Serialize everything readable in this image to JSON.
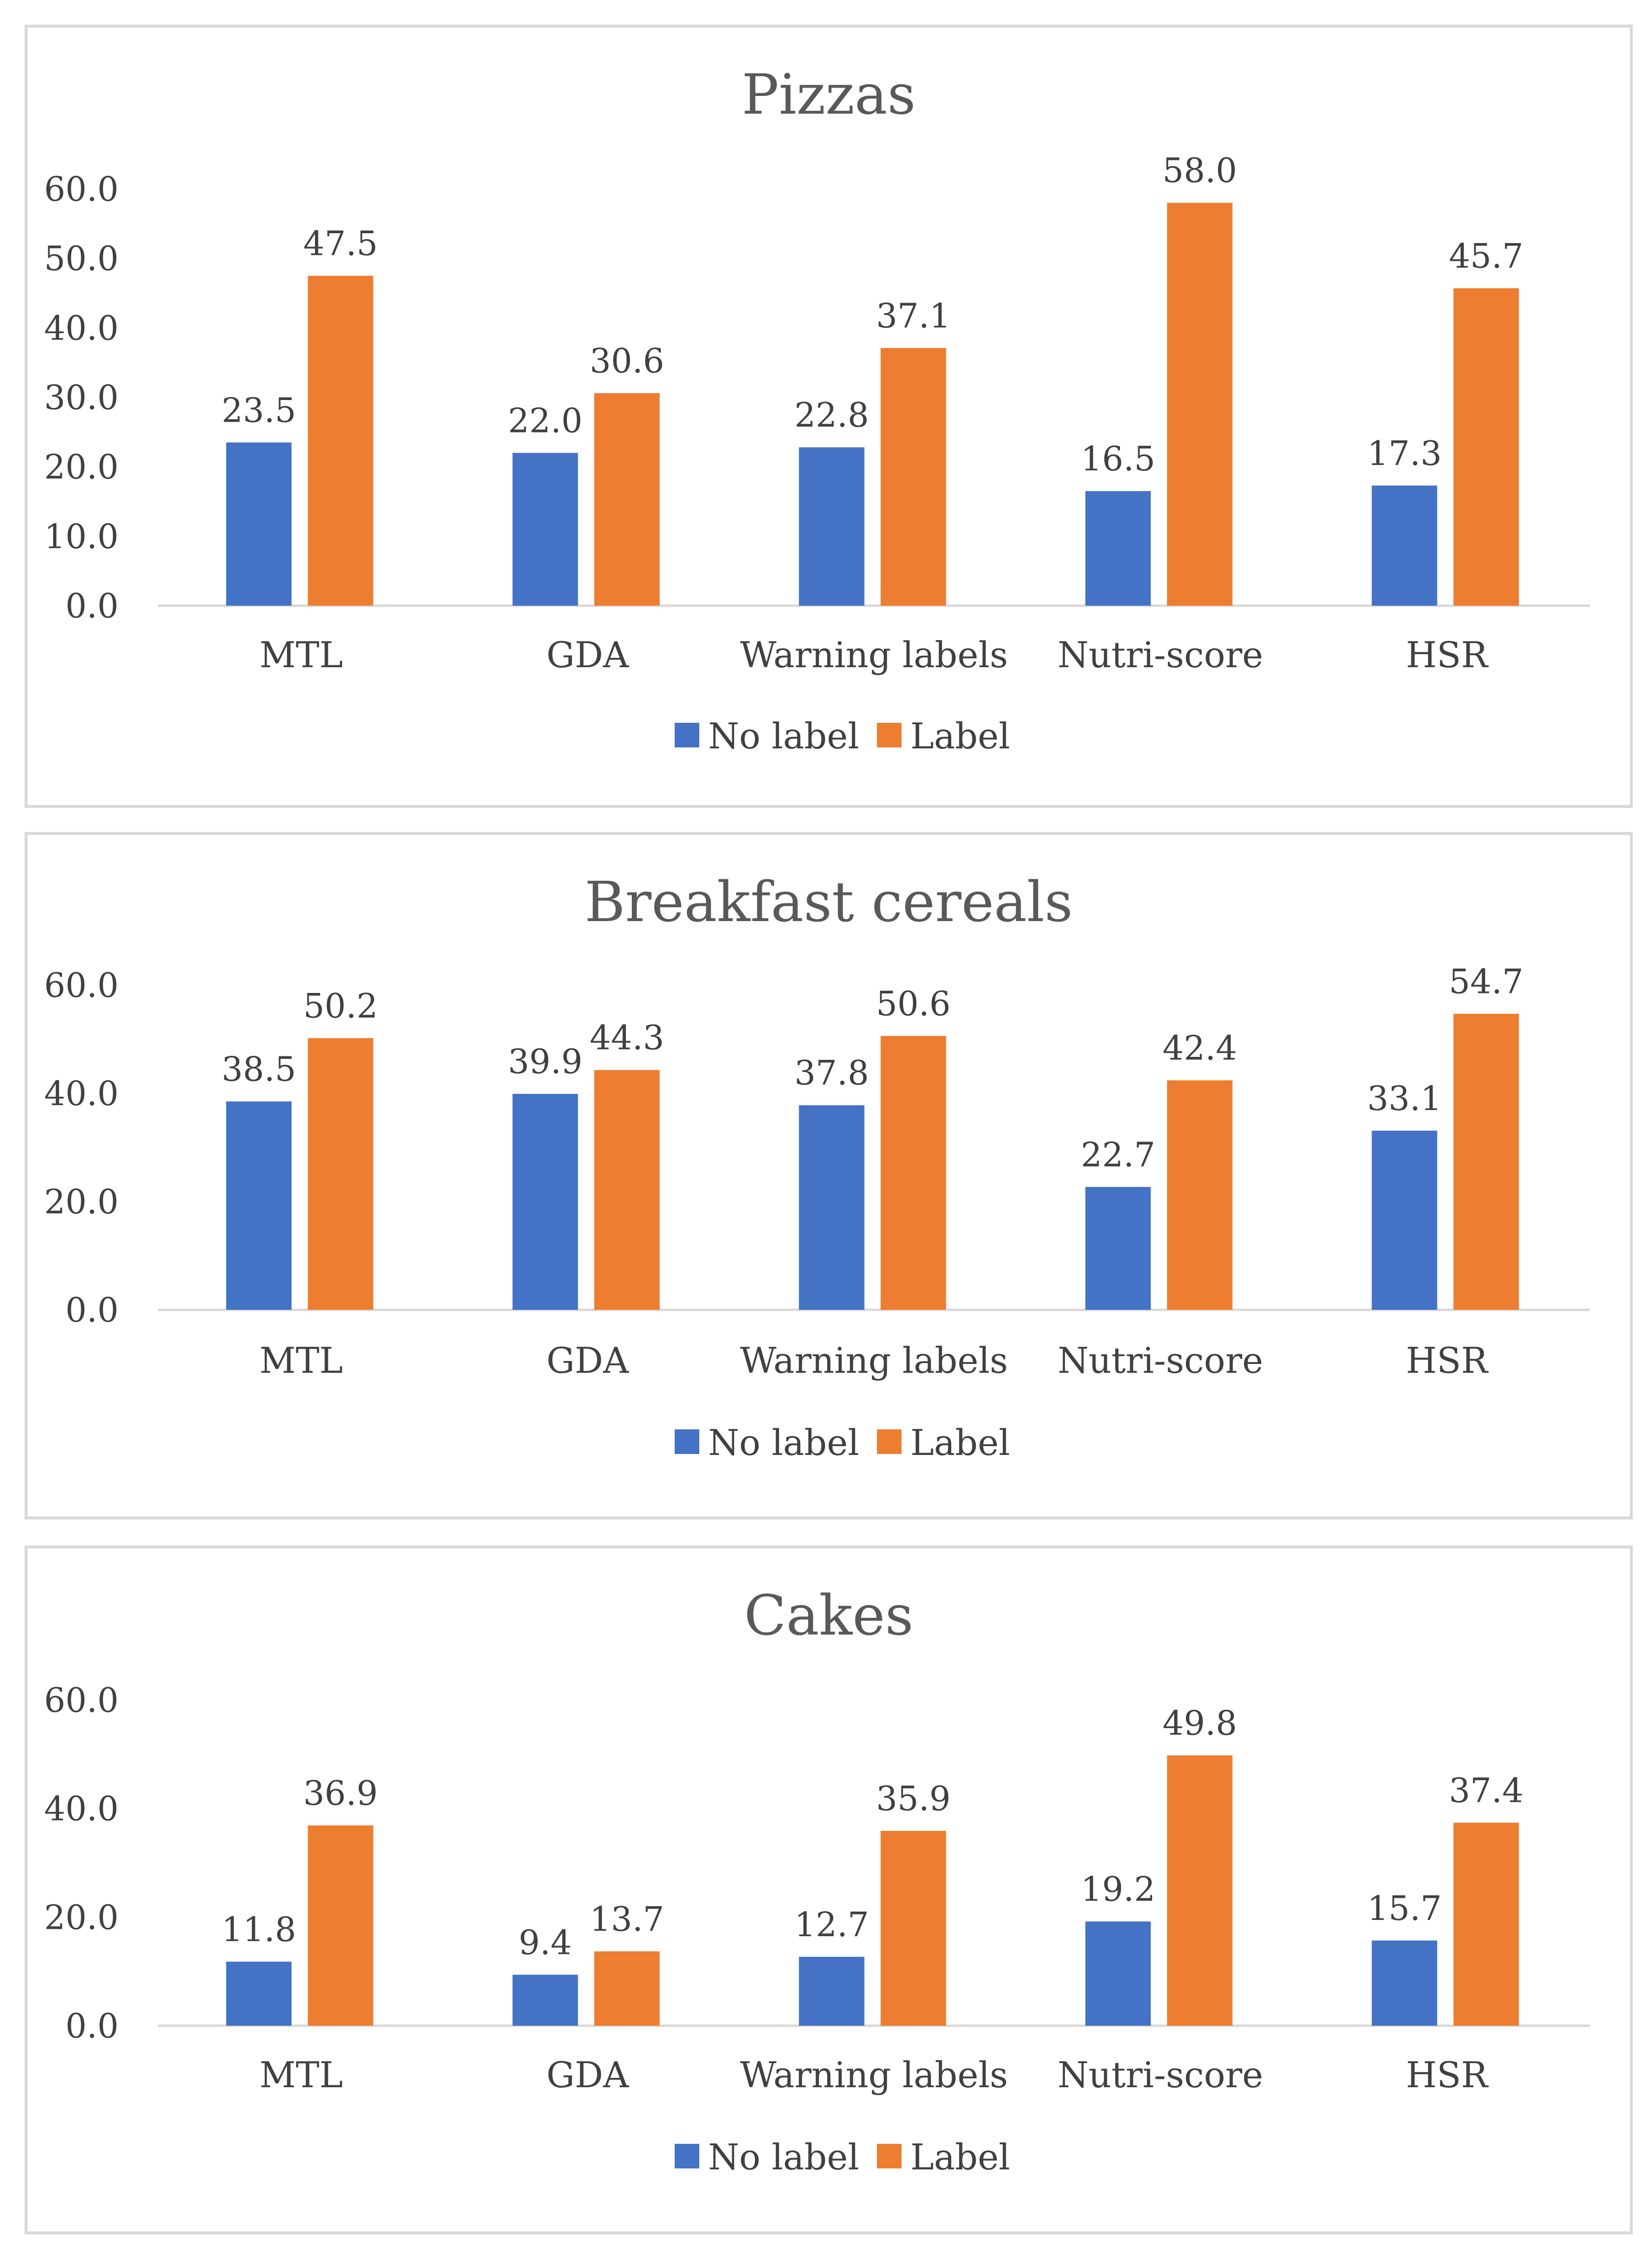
{
  "chart_data": [
    {
      "type": "bar",
      "title": "Pizzas",
      "categories": [
        "MTL",
        "GDA",
        "Warning labels",
        "Nutri-score",
        "HSR"
      ],
      "series": [
        {
          "name": "No label",
          "values": [
            23.5,
            22.0,
            22.8,
            16.5,
            17.3
          ],
          "labels": [
            "23.5",
            "22.0",
            "22.8",
            "16.5",
            "17.3"
          ]
        },
        {
          "name": "Label",
          "values": [
            47.5,
            30.6,
            37.1,
            58.0,
            45.7
          ],
          "labels": [
            "47.5",
            "30.6",
            "37.1",
            "58.0",
            "45.7"
          ]
        }
      ],
      "yticks": [
        "0.0",
        "10.0",
        "20.0",
        "30.0",
        "40.0",
        "50.0",
        "60.0"
      ],
      "ylim": [
        0,
        60
      ],
      "xlabel": "",
      "ylabel": "",
      "legend": "bottom"
    },
    {
      "type": "bar",
      "title": "Breakfast cereals",
      "categories": [
        "MTL",
        "GDA",
        "Warning labels",
        "Nutri-score",
        "HSR"
      ],
      "series": [
        {
          "name": "No label",
          "values": [
            38.5,
            39.9,
            37.8,
            22.7,
            33.1
          ],
          "labels": [
            "38.5",
            "39.9",
            "37.8",
            "22.7",
            "33.1"
          ]
        },
        {
          "name": "Label",
          "values": [
            50.2,
            44.3,
            50.6,
            42.4,
            54.7
          ],
          "labels": [
            "50.2",
            "44.3",
            "50.6",
            "42.4",
            "54.7"
          ]
        }
      ],
      "yticks": [
        "0.0",
        "20.0",
        "40.0",
        "60.0"
      ],
      "ylim": [
        0,
        60
      ],
      "xlabel": "",
      "ylabel": "",
      "legend": "bottom"
    },
    {
      "type": "bar",
      "title": "Cakes",
      "categories": [
        "MTL",
        "GDA",
        "Warning labels",
        "Nutri-score",
        "HSR"
      ],
      "series": [
        {
          "name": "No label",
          "values": [
            11.8,
            9.4,
            12.7,
            19.2,
            15.7
          ],
          "labels": [
            "11.8",
            "9.4",
            "12.7",
            "19.2",
            "15.7"
          ]
        },
        {
          "name": "Label",
          "values": [
            36.9,
            13.7,
            35.9,
            49.8,
            37.4
          ],
          "labels": [
            "36.9",
            "13.7",
            "35.9",
            "49.8",
            "37.4"
          ]
        }
      ],
      "yticks": [
        "0.0",
        "20.0",
        "40.0",
        "60.0"
      ],
      "ylim": [
        0,
        60
      ],
      "xlabel": "",
      "ylabel": "",
      "legend": "bottom"
    }
  ],
  "colors": {
    "no_label": "#4472c4",
    "label": "#ed7d31",
    "axis": "#d9d9d9",
    "text": "#404040",
    "title": "#595959"
  }
}
